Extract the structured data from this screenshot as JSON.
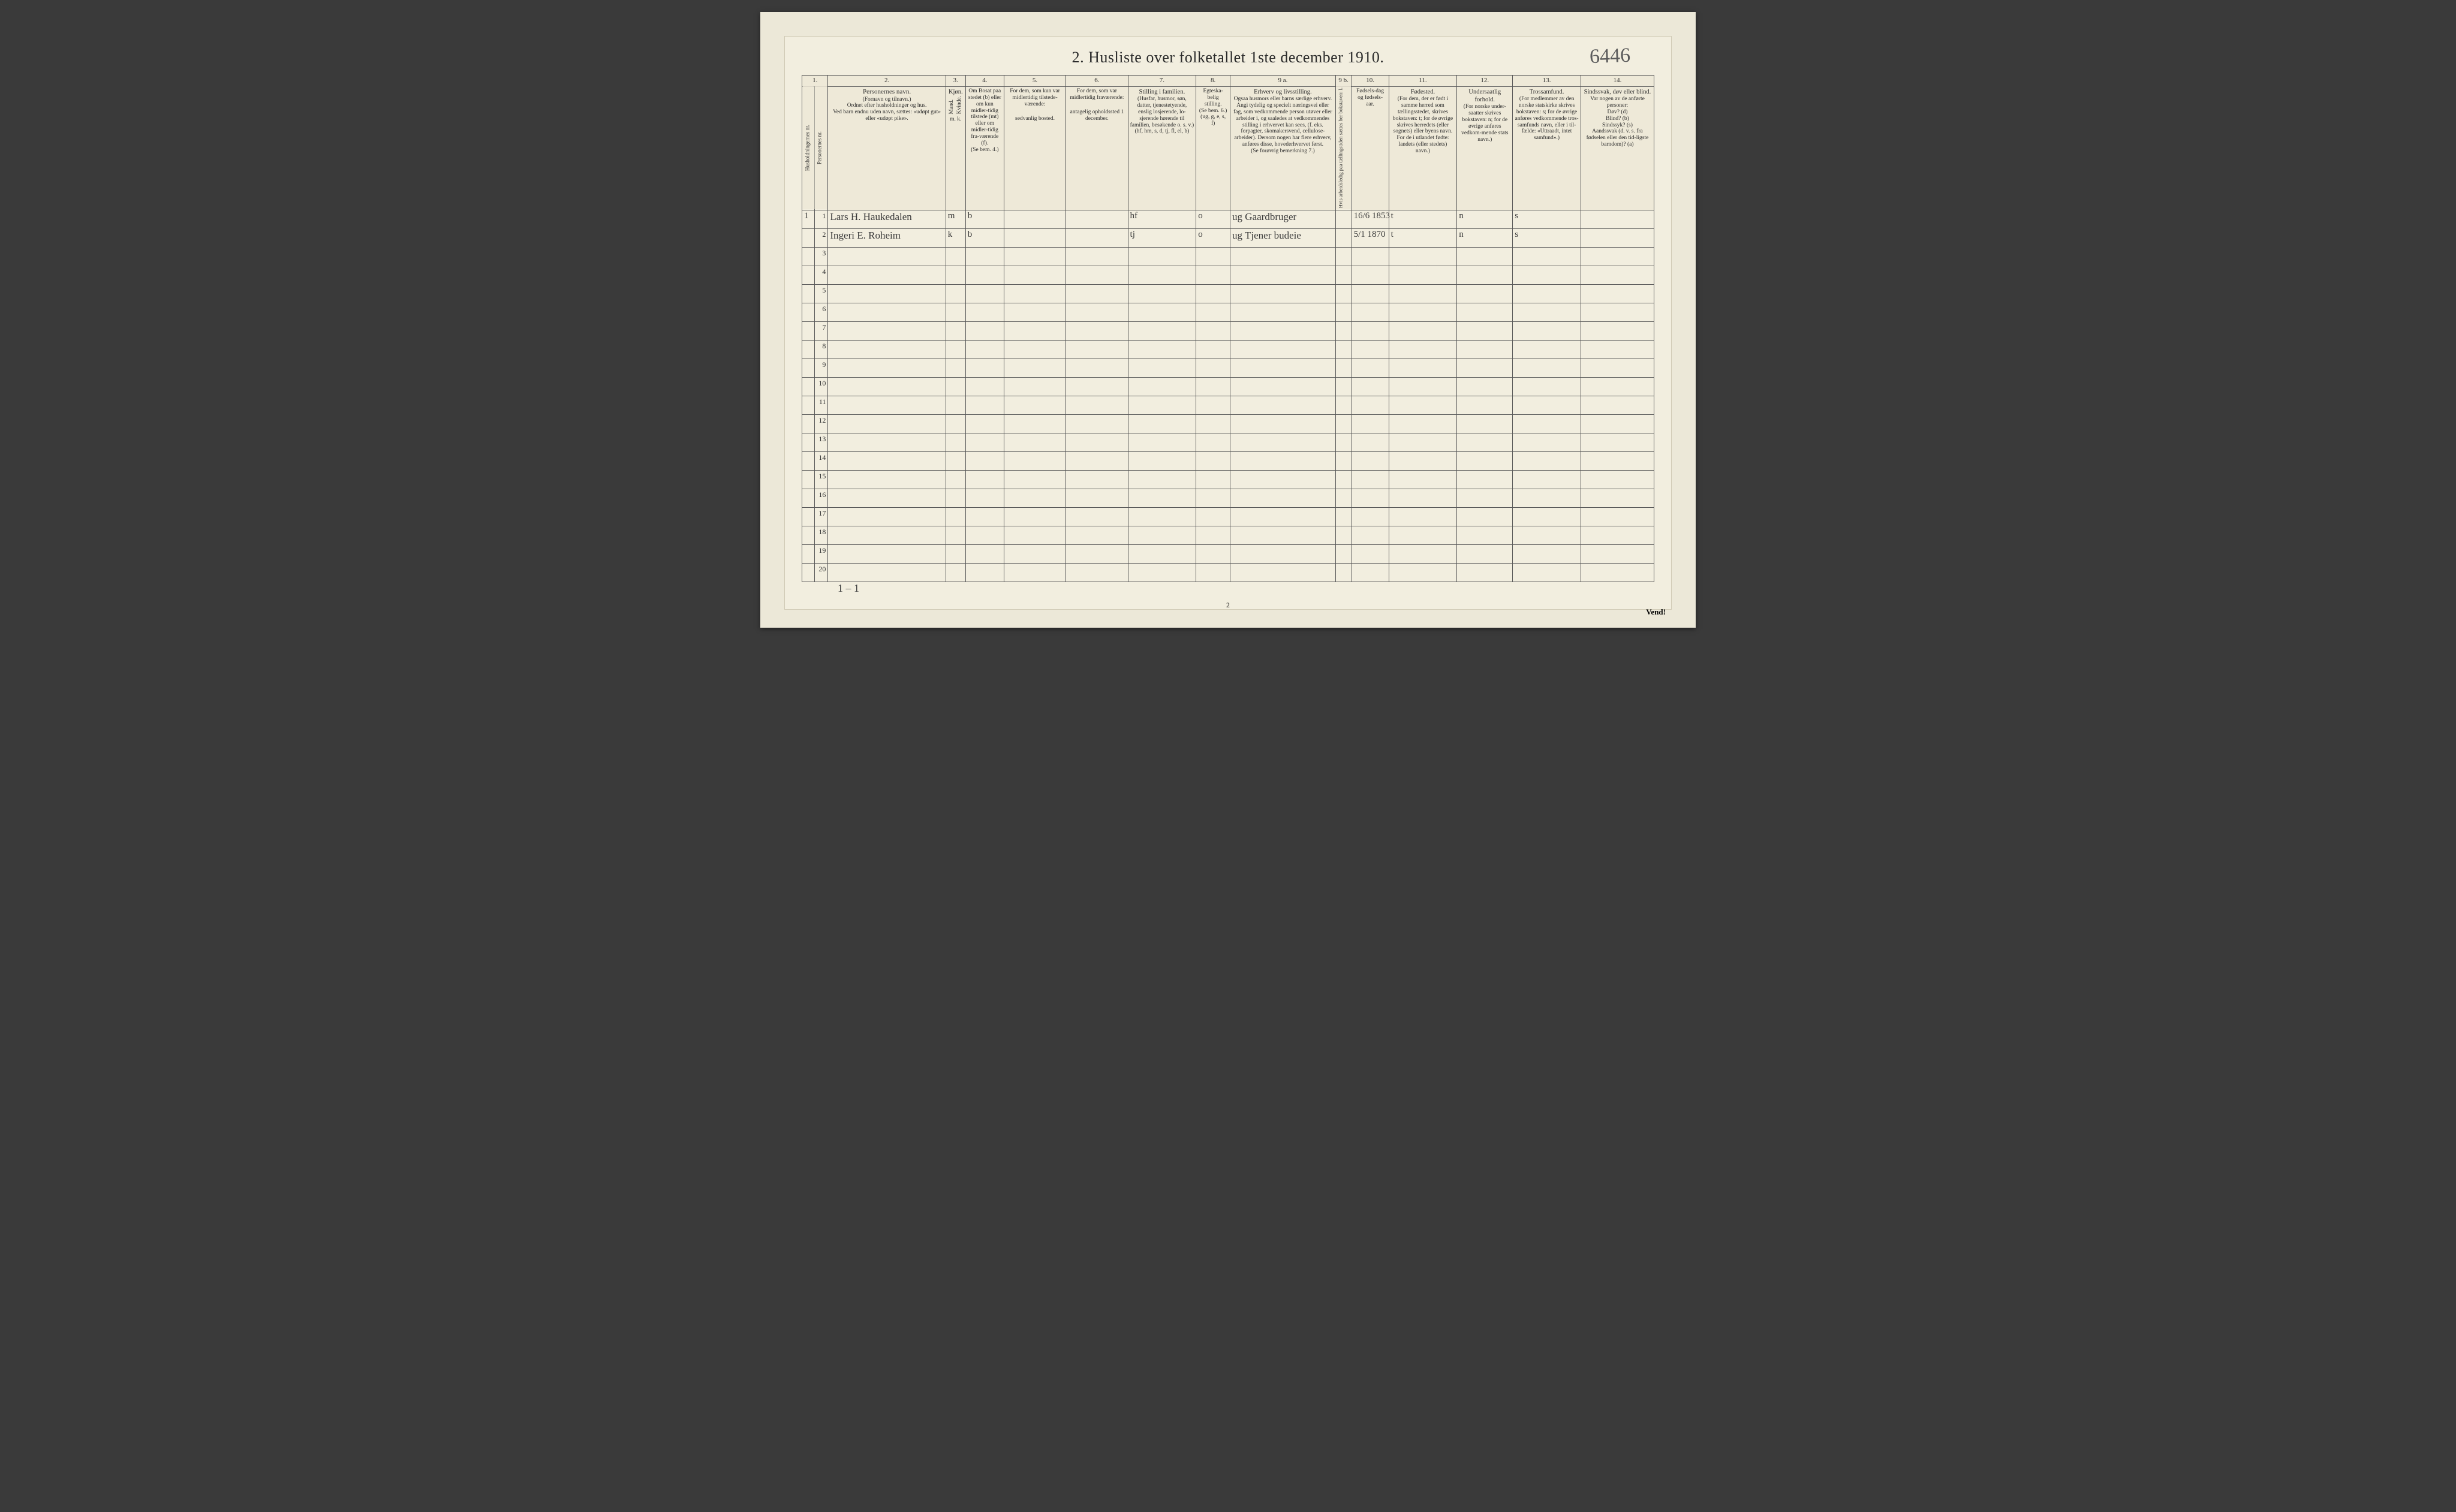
{
  "title": "2.  Husliste over folketallet 1ste december 1910.",
  "topHandwritten": "6446",
  "pageNumber": "2",
  "vend": "Vend!",
  "bottomTally": "1 – 1",
  "columnNumbers": [
    "1.",
    "2.",
    "3.",
    "4.",
    "5.",
    "6.",
    "7.",
    "8.",
    "9 a.",
    "9 b.",
    "10.",
    "11.",
    "12.",
    "13.",
    "14."
  ],
  "headers": {
    "c1a": "Husholdningernes nr.",
    "c1b": "Personernes nr.",
    "c2_title": "Personernes navn.",
    "c2_sub1": "(Fornavn og tilnavn.)",
    "c2_sub2": "Ordnet efter husholdninger og hus.",
    "c2_sub3": "Ved barn endnu uden navn, sættes: «udøpt gut» eller «udøpt pike».",
    "c3_title": "Kjøn.",
    "c3_m": "Mand.",
    "c3_k": "Kvinde.",
    "c3_mk": "m.  k.",
    "c4_title": "Om Bosat paa stedet (b) eller om kun midler-tidig tilstede (mt) eller om midler-tidig fra-værende (f).",
    "c4_sub": "(Se bem. 4.)",
    "c5_title": "For dem, som kun var midlertidig tilstede-værende:",
    "c5_sub": "sedvanlig bosted.",
    "c6_title": "For dem, som var midlertidig fraværende:",
    "c6_sub": "antagelig opholdssted 1 december.",
    "c7_title": "Stilling i familien.",
    "c7_sub1": "(Husfar, husmor, søn, datter, tjenestetyende, enslig losjerende, lo-sjerende hørende til familien, besøkende o. s. v.)",
    "c7_sub2": "(hf, hm, s, d, tj, fl, el, b)",
    "c8_title": "Egteska-belig stilling.",
    "c8_sub1": "(Se bem. 6.)",
    "c8_sub2": "(ug, g, e, s, f)",
    "c9a_title": "Erhverv og livsstilling.",
    "c9a_sub": "Ogsaa husmors eller barns særlige erhverv. Angi tydelig og specielt næringsvei eller fag, som vedkommende person utøver eller arbeider i, og saaledes at vedkommendes stilling i erhvervet kan sees, (f. eks. forpagter, skomakersvend, cellulose-arbeider). Dersom nogen har flere erhverv, anføres disse, hovederhvervet først.",
    "c9a_sub2": "(Se forøvrig bemerkning 7.)",
    "c9b_title": "Hvis arbeidsledig paa tællingstiden sættes her bokstaven: l.",
    "c10_title": "Fødsels-dag og fødsels-aar.",
    "c11_title": "Fødested.",
    "c11_sub": "(For dem, der er født i samme herred som tællingsstedet, skrives bokstaven: t; for de øvrige skrives herredets (eller sognets) eller byens navn. For de i utlandet fødte: landets (eller stedets) navn.)",
    "c12_title": "Undersaatlig forhold.",
    "c12_sub": "(For norske under-saatter skrives bokstaven: n; for de øvrige anføres vedkom-mende stats navn.)",
    "c13_title": "Trossamfund.",
    "c13_sub": "(For medlemmer av den norske statskirke skrives bokstaven: s; for de øvrige anføres vedkommende tros-samfunds navn, eller i til-fælde: «Uttraadt, intet samfund».)",
    "c14_title": "Sindssvak, døv eller blind.",
    "c14_sub1": "Var nogen av de anførte personer:",
    "c14_sub2": "Døv?  (d)",
    "c14_sub3": "Blind?  (b)",
    "c14_sub4": "Sindssyk? (s)",
    "c14_sub5": "Aandssvak (d. v. s. fra fødselen eller den tid-ligste barndom)?  (a)"
  },
  "rows": [
    {
      "hh": "1",
      "pnr": "1",
      "name": "Lars H. Haukedalen",
      "sex": "m",
      "bosat": "b",
      "famst": "hf",
      "egte": "o",
      "erhverv": "ug  Gaardbruger",
      "fdato": "16/6 1853",
      "fsted": "t",
      "unders": "n",
      "tros": "s"
    },
    {
      "hh": "",
      "pnr": "2",
      "name": "Ingeri E. Roheim",
      "sex": "k",
      "bosat": "b",
      "famst": "tj",
      "egte": "o",
      "erhverv": "ug  Tjener  budeie",
      "fdato": "5/1 1870",
      "fsted": "t",
      "unders": "n",
      "tros": "s"
    }
  ],
  "emptyRowCount": 18,
  "colors": {
    "pageBg": "#3a3a3a",
    "paper": "#ece8d8",
    "sheet": "#f2eedf",
    "rule": "#5a5a5a",
    "ink": "#2b2b2b",
    "pencil": "#5b5b5b"
  }
}
